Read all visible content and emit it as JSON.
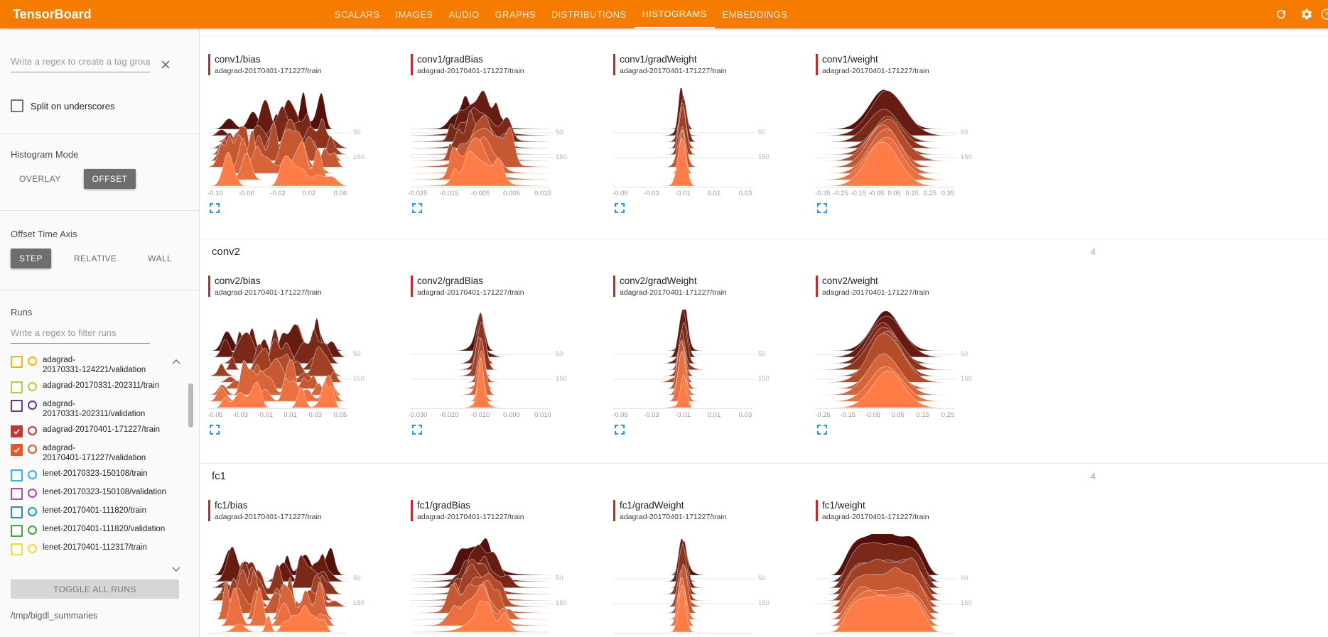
{
  "header": {
    "title": "TensorBoard",
    "tabs": [
      {
        "label": "SCALARS",
        "active": false
      },
      {
        "label": "IMAGES",
        "active": false
      },
      {
        "label": "AUDIO",
        "active": false
      },
      {
        "label": "GRAPHS",
        "active": false
      },
      {
        "label": "DISTRIBUTIONS",
        "active": false
      },
      {
        "label": "HISTOGRAMS",
        "active": true
      },
      {
        "label": "EMBEDDINGS",
        "active": false
      }
    ],
    "icons": [
      {
        "name": "refresh"
      },
      {
        "name": "settings"
      },
      {
        "name": "help"
      }
    ]
  },
  "sidebar": {
    "tag_filter": {
      "placeholder": "Write a regex to create a tag group",
      "value": ""
    },
    "split_on_underscores": {
      "label": "Split on underscores",
      "checked": false
    },
    "histogram_mode": {
      "label": "Histogram Mode",
      "options": [
        "OVERLAY",
        "OFFSET"
      ],
      "selected": "OFFSET"
    },
    "offset_time_axis": {
      "label": "Offset Time Axis",
      "options": [
        "STEP",
        "RELATIVE",
        "WALL"
      ],
      "selected": "STEP"
    },
    "runs": {
      "label": "Runs",
      "filter": {
        "placeholder": "Write a regex to filter runs",
        "value": ""
      },
      "items": [
        {
          "label": "adagrad-20170331-124221/validation",
          "lines": [
            "adagrad-",
            "20170331-124221/validation"
          ],
          "checked": false,
          "color": "#ffb300"
        },
        {
          "label": "adagrad-20170331-202311/train",
          "lines": [
            "adagrad-20170331-202311/train"
          ],
          "checked": false,
          "color": "#c0ca33"
        },
        {
          "label": "adagrad-20170331-202311/validation",
          "lines": [
            "adagrad-",
            "20170331-202311/validation"
          ],
          "checked": false,
          "color": "#5e35b1"
        },
        {
          "label": "adagrad-20170401-171227/train",
          "lines": [
            "adagrad-20170401-171227/train"
          ],
          "checked": true,
          "color": "#d32f2f"
        },
        {
          "label": "adagrad-20170401-171227/validation",
          "lines": [
            "adagrad-",
            "20170401-171227/validation"
          ],
          "checked": true,
          "color": "#f4511e"
        },
        {
          "label": "lenet-20170323-150108/train",
          "lines": [
            "lenet-20170323-150108/train"
          ],
          "checked": false,
          "color": "#29b6f6"
        },
        {
          "label": "lenet-20170323-150108/validation",
          "lines": [
            "lenet-20170323-150108/validation"
          ],
          "checked": false,
          "color": "#ab47bc"
        },
        {
          "label": "lenet-20170401-111820/train",
          "lines": [
            "lenet-20170401-111820/train"
          ],
          "checked": false,
          "color": "#1e88e5"
        },
        {
          "label": "lenet-20170401-111820/validation",
          "lines": [
            "lenet-20170401-111820/validation"
          ],
          "checked": false,
          "color": "#43a047"
        },
        {
          "label": "lenet-20170401-112317/train",
          "lines": [
            "lenet-20170401-112317/train"
          ],
          "checked": false,
          "color": "#fdd835"
        }
      ],
      "toggle_all_label": "TOGGLE ALL RUNS",
      "log_dir": "/tmp/bigdl_summaries"
    }
  },
  "main": {
    "selected_run": "adagrad-20170401-171227/train",
    "accent_color": "#c62828",
    "ridge_palette": {
      "dark": "#54100a",
      "light": "#ff7c46"
    },
    "y_ticks": [
      "50",
      "150"
    ],
    "sections": [
      {
        "name": "conv1",
        "count": null,
        "header_visible": false,
        "cards": [
          {
            "title": "conv1/bias",
            "run": "adagrad-20170401-171227/train",
            "shape": "jagged",
            "seed": 3,
            "x_ticks": [
              "-0.10",
              "-0.06",
              "-0.02",
              "0.02",
              "0.06"
            ]
          },
          {
            "title": "conv1/gradBias",
            "run": "adagrad-20170401-171227/train",
            "shape": "bumpy",
            "seed": 7,
            "x_ticks": [
              "-0.025",
              "-0.015",
              "-0.005",
              "0.005",
              "0.015"
            ]
          },
          {
            "title": "conv1/gradWeight",
            "run": "adagrad-20170401-171227/train",
            "shape": "spike",
            "seed": 13,
            "x_ticks": [
              "-0.05",
              "-0.03",
              "-0.01",
              "0.01",
              "0.03"
            ]
          },
          {
            "title": "conv1/weight",
            "run": "adagrad-20170401-171227/train",
            "shape": "bell",
            "seed": 21,
            "x_ticks": [
              "-0.35",
              "-0.25",
              "-0.15",
              "-0.05",
              "0.05",
              "0.15",
              "0.25",
              "0.35"
            ]
          }
        ]
      },
      {
        "name": "conv2",
        "count": "4",
        "header_visible": true,
        "cards": [
          {
            "title": "conv2/bias",
            "run": "adagrad-20170401-171227/train",
            "shape": "jagged",
            "seed": 31,
            "x_ticks": [
              "-0.05",
              "-0.03",
              "-0.01",
              "0.01",
              "0.03",
              "0.05"
            ]
          },
          {
            "title": "conv2/gradBias",
            "run": "adagrad-20170401-171227/train",
            "shape": "spike",
            "seed": 37,
            "x_ticks": [
              "-0.030",
              "-0.020",
              "-0.010",
              "0.000",
              "0.010"
            ]
          },
          {
            "title": "conv2/gradWeight",
            "run": "adagrad-20170401-171227/train",
            "shape": "spike",
            "seed": 41,
            "x_ticks": [
              "-0.05",
              "-0.03",
              "-0.01",
              "0.01",
              "0.03"
            ]
          },
          {
            "title": "conv2/weight",
            "run": "adagrad-20170401-171227/train",
            "shape": "bell",
            "seed": 47,
            "x_ticks": [
              "-0.25",
              "-0.15",
              "-0.05",
              "0.05",
              "0.15",
              "0.25"
            ]
          }
        ]
      },
      {
        "name": "fc1",
        "count": "4",
        "header_visible": true,
        "cards": [
          {
            "title": "fc1/bias",
            "run": "adagrad-20170401-171227/train",
            "shape": "jagged",
            "seed": 53,
            "x_ticks": []
          },
          {
            "title": "fc1/gradBias",
            "run": "adagrad-20170401-171227/train",
            "shape": "bumpy",
            "seed": 59,
            "x_ticks": []
          },
          {
            "title": "fc1/gradWeight",
            "run": "adagrad-20170401-171227/train",
            "shape": "spike",
            "seed": 61,
            "x_ticks": []
          },
          {
            "title": "fc1/weight",
            "run": "adagrad-20170401-171227/train",
            "shape": "plateau",
            "seed": 67,
            "x_ticks": []
          }
        ]
      }
    ]
  }
}
